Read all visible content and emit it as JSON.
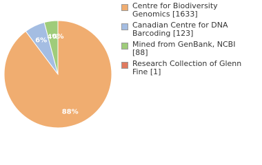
{
  "chart_data": {
    "type": "pie",
    "categories": [
      "Centre for Biodiversity Genomics [1633]",
      "Canadian Centre for DNA Barcoding [123]",
      "Mined from GenBank, NCBI [88]",
      "Research Collection of Glenn Fine [1]"
    ],
    "values": [
      88,
      6,
      4,
      0
    ],
    "value_labels": [
      "88%",
      "6%",
      "4%",
      "0%"
    ],
    "colors": [
      "#f0ad70",
      "#a4bde2",
      "#9fcc7a",
      "#e07a5f"
    ]
  }
}
